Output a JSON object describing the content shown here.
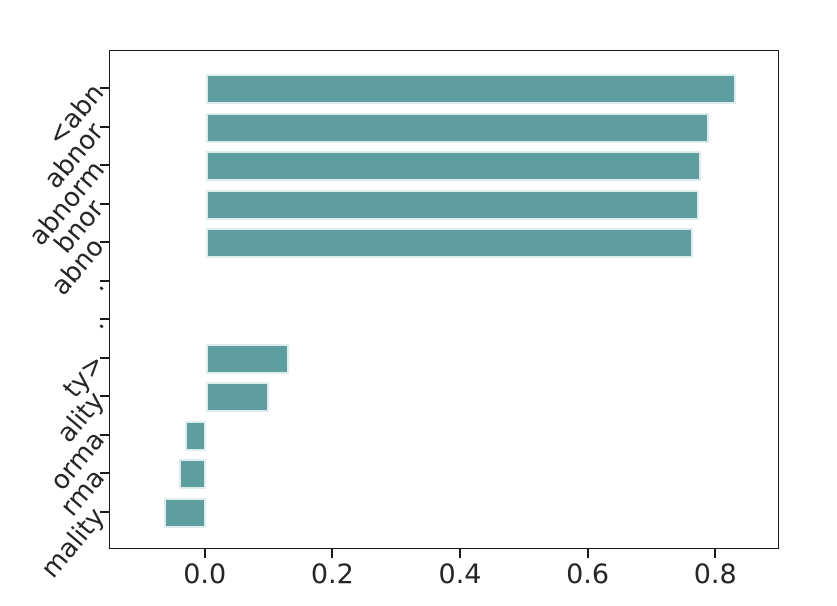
{
  "chart_data": {
    "type": "bar",
    "orientation": "horizontal",
    "title": "",
    "xlabel": "",
    "ylabel": "",
    "categories": [
      "<abn",
      "abnor",
      "abnorm",
      "bnor",
      "abno",
      ".",
      ".",
      "ty>",
      "ality",
      "orma",
      "rma",
      "mality"
    ],
    "values": [
      0.831,
      0.789,
      0.777,
      0.773,
      0.764,
      0,
      0,
      0.13,
      0.099,
      -0.032,
      -0.042,
      -0.066
    ],
    "xlim": [
      -0.15,
      0.9
    ],
    "xticks": [
      0.0,
      0.2,
      0.4,
      0.6,
      0.8
    ],
    "xtick_labels": [
      "0.0",
      "0.2",
      "0.4",
      "0.6",
      "0.8"
    ],
    "ytick_label_rotation_deg": 50,
    "grid": false,
    "legend": null,
    "bar_color": "#5f9ea0",
    "bar_edge_color": "#ddecec",
    "axis_color": "#1a1a1a",
    "tick_label_color": "#262626",
    "background_color": "#ffffff"
  }
}
